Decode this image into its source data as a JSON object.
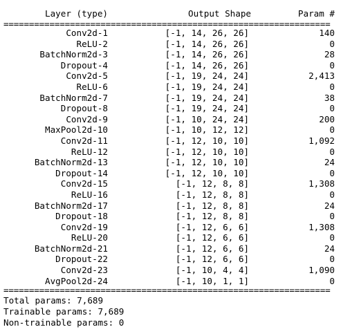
{
  "header": {
    "layer": "Layer (type)",
    "shape": "Output Shape",
    "param": "Param #"
  },
  "separator": "================================================================",
  "rows": [
    {
      "layer": "Conv2d-1",
      "shape": "[-1, 14, 26, 26]",
      "param": "140"
    },
    {
      "layer": "ReLU-2",
      "shape": "[-1, 14, 26, 26]",
      "param": "0"
    },
    {
      "layer": "BatchNorm2d-3",
      "shape": "[-1, 14, 26, 26]",
      "param": "28"
    },
    {
      "layer": "Dropout-4",
      "shape": "[-1, 14, 26, 26]",
      "param": "0"
    },
    {
      "layer": "Conv2d-5",
      "shape": "[-1, 19, 24, 24]",
      "param": "2,413"
    },
    {
      "layer": "ReLU-6",
      "shape": "[-1, 19, 24, 24]",
      "param": "0"
    },
    {
      "layer": "BatchNorm2d-7",
      "shape": "[-1, 19, 24, 24]",
      "param": "38"
    },
    {
      "layer": "Dropout-8",
      "shape": "[-1, 19, 24, 24]",
      "param": "0"
    },
    {
      "layer": "Conv2d-9",
      "shape": "[-1, 10, 24, 24]",
      "param": "200"
    },
    {
      "layer": "MaxPool2d-10",
      "shape": "[-1, 10, 12, 12]",
      "param": "0"
    },
    {
      "layer": "Conv2d-11",
      "shape": "[-1, 12, 10, 10]",
      "param": "1,092"
    },
    {
      "layer": "ReLU-12",
      "shape": "[-1, 12, 10, 10]",
      "param": "0"
    },
    {
      "layer": "BatchNorm2d-13",
      "shape": "[-1, 12, 10, 10]",
      "param": "24"
    },
    {
      "layer": "Dropout-14",
      "shape": "[-1, 12, 10, 10]",
      "param": "0"
    },
    {
      "layer": "Conv2d-15",
      "shape": "[-1, 12, 8, 8]",
      "param": "1,308"
    },
    {
      "layer": "ReLU-16",
      "shape": "[-1, 12, 8, 8]",
      "param": "0"
    },
    {
      "layer": "BatchNorm2d-17",
      "shape": "[-1, 12, 8, 8]",
      "param": "24"
    },
    {
      "layer": "Dropout-18",
      "shape": "[-1, 12, 8, 8]",
      "param": "0"
    },
    {
      "layer": "Conv2d-19",
      "shape": "[-1, 12, 6, 6]",
      "param": "1,308"
    },
    {
      "layer": "ReLU-20",
      "shape": "[-1, 12, 6, 6]",
      "param": "0"
    },
    {
      "layer": "BatchNorm2d-21",
      "shape": "[-1, 12, 6, 6]",
      "param": "24"
    },
    {
      "layer": "Dropout-22",
      "shape": "[-1, 12, 6, 6]",
      "param": "0"
    },
    {
      "layer": "Conv2d-23",
      "shape": "[-1, 10, 4, 4]",
      "param": "1,090"
    },
    {
      "layer": "AvgPool2d-24",
      "shape": "[-1, 10, 1, 1]",
      "param": "0"
    }
  ],
  "totals": {
    "total": "Total params: 7,689",
    "trainable": "Trainable params: 7,689",
    "non_trainable": "Non-trainable params: 0"
  }
}
